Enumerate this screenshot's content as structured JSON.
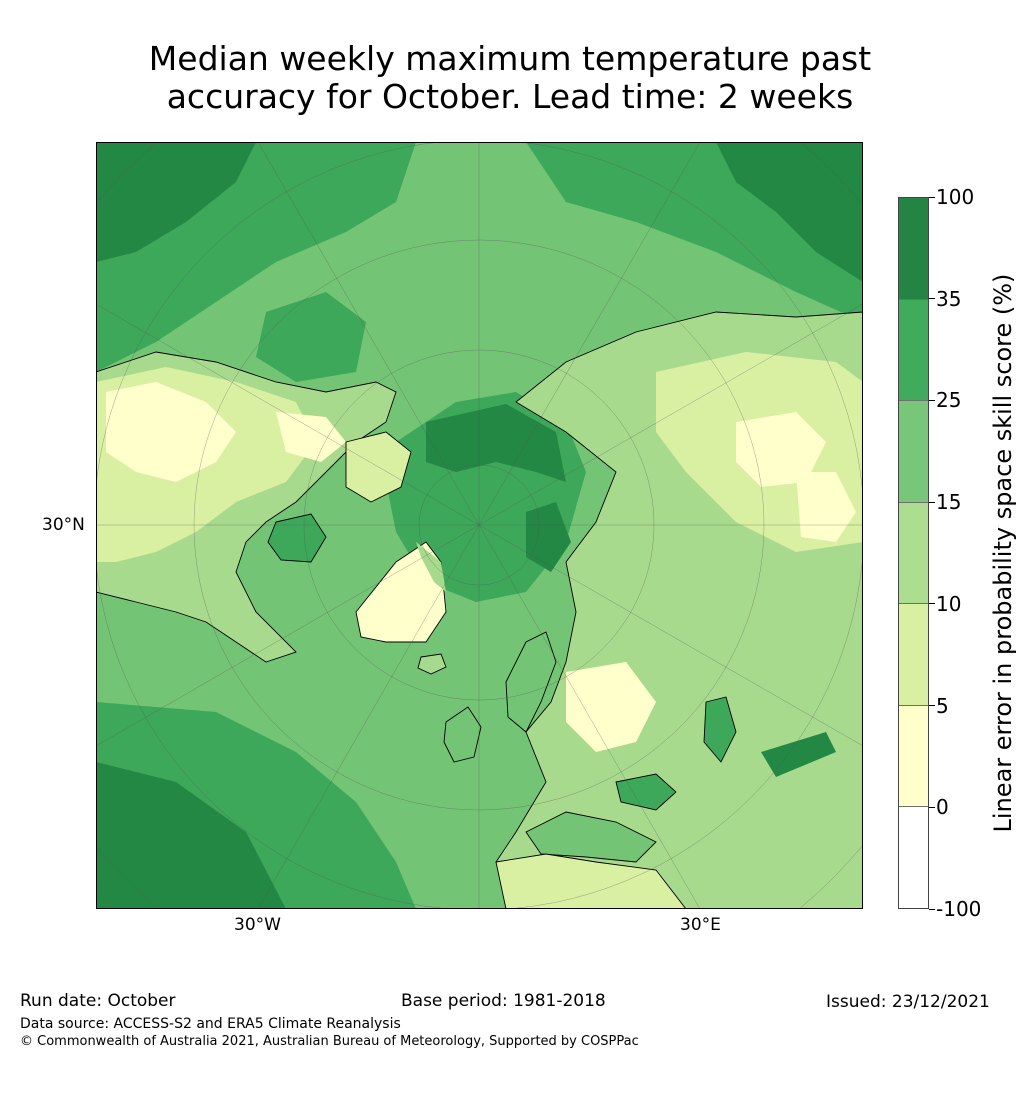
{
  "title": {
    "line1": "Median weekly maximum temperature past",
    "line2": "accuracy for October. Lead time: 2 weeks"
  },
  "map": {
    "axis_labels": {
      "lat": "30°N",
      "lon_west": "30°W",
      "lon_east": "30°E"
    },
    "colors": {
      "ocean_dark": "#228844",
      "ocean_mid": "#3da85a",
      "ocean_light": "#74c476",
      "land_light": "#a8da8e",
      "land_pale": "#d9f0a3",
      "land_cream": "#ffffcc",
      "coast": "#000000"
    }
  },
  "colorbar": {
    "title": "Linear error in probability space skill score (%)",
    "ticks": [
      "100",
      "35",
      "25",
      "15",
      "10",
      "5",
      "0",
      "-100"
    ],
    "colors": [
      "#238443",
      "#41ab5d",
      "#78c679",
      "#addd8e",
      "#d9f0a3",
      "#ffffcc",
      "#ffffff"
    ]
  },
  "footer": {
    "run_date": "Run date: October",
    "base_period": "Base period: 1981-2018",
    "issued": "Issued: 23/12/2021",
    "data_source": "Data source: ACCESS-S2 and ERA5 Climate Reanalysis",
    "copyright": "© Commonwealth of Australia 2021, Australian Bureau of Meteorology, Supported by COSPPac"
  }
}
